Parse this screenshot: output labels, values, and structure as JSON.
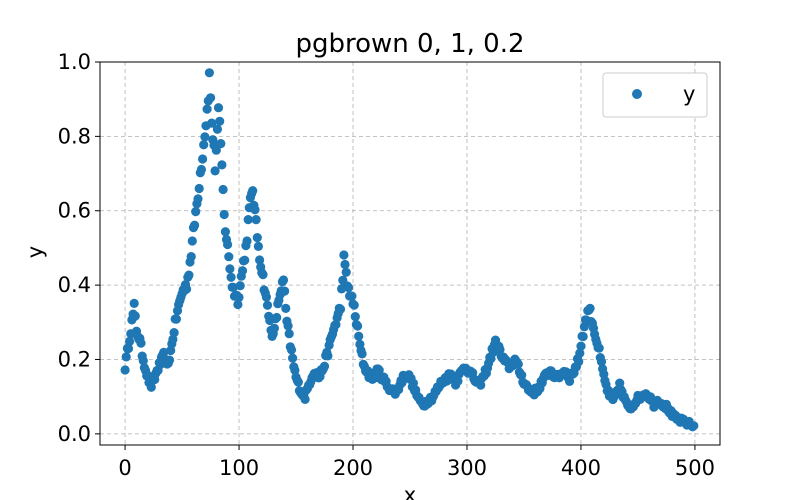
{
  "chart_data": {
    "type": "scatter",
    "title": "pgbrown 0, 1, 0.2",
    "xlabel": "x",
    "ylabel": "y",
    "xlim": [
      -22,
      522
    ],
    "ylim": [
      -0.03,
      1.0
    ],
    "xticks": [
      0,
      100,
      200,
      300,
      400,
      500
    ],
    "yticks": [
      0.0,
      0.2,
      0.4,
      0.6,
      0.8,
      1.0
    ],
    "xtick_labels": [
      "0",
      "100",
      "200",
      "300",
      "400",
      "500"
    ],
    "ytick_labels": [
      "0.0",
      "0.2",
      "0.4",
      "0.6",
      "0.8",
      "1.0"
    ],
    "grid": true,
    "legend": {
      "placement": "top-right",
      "entries": [
        "y"
      ]
    },
    "color": "#1f77b4",
    "anchors": [
      [
        0,
        0.18
      ],
      [
        3,
        0.24
      ],
      [
        6,
        0.3
      ],
      [
        8,
        0.34
      ],
      [
        10,
        0.28
      ],
      [
        13,
        0.25
      ],
      [
        16,
        0.2
      ],
      [
        20,
        0.15
      ],
      [
        23,
        0.13
      ],
      [
        25,
        0.14
      ],
      [
        28,
        0.17
      ],
      [
        31,
        0.19
      ],
      [
        34,
        0.21
      ],
      [
        37,
        0.18
      ],
      [
        40,
        0.22
      ],
      [
        43,
        0.28
      ],
      [
        46,
        0.33
      ],
      [
        50,
        0.38
      ],
      [
        54,
        0.4
      ],
      [
        57,
        0.46
      ],
      [
        60,
        0.54
      ],
      [
        63,
        0.62
      ],
      [
        66,
        0.7
      ],
      [
        69,
        0.78
      ],
      [
        72,
        0.87
      ],
      [
        74,
        0.96
      ],
      [
        76,
        0.84
      ],
      [
        79,
        0.72
      ],
      [
        82,
        0.86
      ],
      [
        84,
        0.78
      ],
      [
        86,
        0.65
      ],
      [
        88,
        0.55
      ],
      [
        90,
        0.5
      ],
      [
        92,
        0.45
      ],
      [
        94,
        0.4
      ],
      [
        96,
        0.38
      ],
      [
        99,
        0.36
      ],
      [
        102,
        0.42
      ],
      [
        106,
        0.5
      ],
      [
        109,
        0.6
      ],
      [
        112,
        0.66
      ],
      [
        115,
        0.56
      ],
      [
        118,
        0.48
      ],
      [
        121,
        0.42
      ],
      [
        124,
        0.36
      ],
      [
        127,
        0.3
      ],
      [
        130,
        0.26
      ],
      [
        133,
        0.32
      ],
      [
        136,
        0.38
      ],
      [
        139,
        0.41
      ],
      [
        142,
        0.3
      ],
      [
        145,
        0.24
      ],
      [
        148,
        0.18
      ],
      [
        151,
        0.14
      ],
      [
        155,
        0.11
      ],
      [
        158,
        0.1
      ],
      [
        162,
        0.14
      ],
      [
        166,
        0.17
      ],
      [
        170,
        0.15
      ],
      [
        174,
        0.18
      ],
      [
        178,
        0.22
      ],
      [
        182,
        0.27
      ],
      [
        186,
        0.31
      ],
      [
        189,
        0.34
      ],
      [
        192,
        0.47
      ],
      [
        195,
        0.4
      ],
      [
        198,
        0.37
      ],
      [
        201,
        0.34
      ],
      [
        204,
        0.28
      ],
      [
        207,
        0.22
      ],
      [
        210,
        0.18
      ],
      [
        214,
        0.16
      ],
      [
        218,
        0.15
      ],
      [
        222,
        0.17
      ],
      [
        226,
        0.15
      ],
      [
        230,
        0.13
      ],
      [
        234,
        0.12
      ],
      [
        238,
        0.11
      ],
      [
        242,
        0.14
      ],
      [
        246,
        0.16
      ],
      [
        250,
        0.15
      ],
      [
        254,
        0.12
      ],
      [
        258,
        0.09
      ],
      [
        262,
        0.08
      ],
      [
        266,
        0.09
      ],
      [
        270,
        0.1
      ],
      [
        274,
        0.12
      ],
      [
        278,
        0.14
      ],
      [
        282,
        0.15
      ],
      [
        286,
        0.16
      ],
      [
        290,
        0.14
      ],
      [
        294,
        0.16
      ],
      [
        298,
        0.18
      ],
      [
        302,
        0.17
      ],
      [
        306,
        0.15
      ],
      [
        310,
        0.13
      ],
      [
        314,
        0.15
      ],
      [
        318,
        0.18
      ],
      [
        322,
        0.22
      ],
      [
        326,
        0.25
      ],
      [
        330,
        0.21
      ],
      [
        334,
        0.19
      ],
      [
        338,
        0.18
      ],
      [
        342,
        0.2
      ],
      [
        346,
        0.17
      ],
      [
        350,
        0.14
      ],
      [
        354,
        0.12
      ],
      [
        358,
        0.11
      ],
      [
        362,
        0.12
      ],
      [
        366,
        0.14
      ],
      [
        370,
        0.16
      ],
      [
        374,
        0.17
      ],
      [
        378,
        0.15
      ],
      [
        382,
        0.16
      ],
      [
        386,
        0.17
      ],
      [
        390,
        0.15
      ],
      [
        394,
        0.17
      ],
      [
        398,
        0.2
      ],
      [
        401,
        0.26
      ],
      [
        404,
        0.3
      ],
      [
        407,
        0.34
      ],
      [
        410,
        0.3
      ],
      [
        413,
        0.26
      ],
      [
        416,
        0.22
      ],
      [
        419,
        0.17
      ],
      [
        422,
        0.13
      ],
      [
        425,
        0.1
      ],
      [
        428,
        0.09
      ],
      [
        431,
        0.11
      ],
      [
        434,
        0.13
      ],
      [
        437,
        0.1
      ],
      [
        440,
        0.08
      ],
      [
        444,
        0.07
      ],
      [
        448,
        0.09
      ],
      [
        452,
        0.1
      ],
      [
        456,
        0.11
      ],
      [
        460,
        0.1
      ],
      [
        464,
        0.08
      ],
      [
        468,
        0.09
      ],
      [
        472,
        0.08
      ],
      [
        476,
        0.07
      ],
      [
        480,
        0.05
      ],
      [
        484,
        0.04
      ],
      [
        488,
        0.035
      ],
      [
        492,
        0.03
      ],
      [
        496,
        0.025
      ],
      [
        499,
        0.02
      ]
    ]
  }
}
